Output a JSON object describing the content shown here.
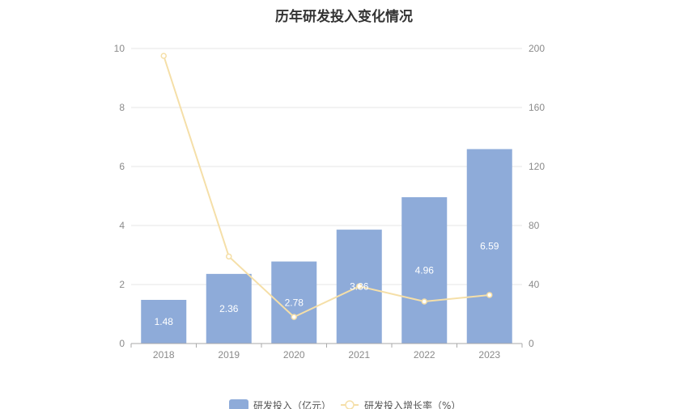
{
  "chart_data": {
    "type": "bar",
    "title": "历年研发投入变化情况",
    "categories": [
      "2018",
      "2019",
      "2020",
      "2021",
      "2022",
      "2023"
    ],
    "series": [
      {
        "name": "研发投入（亿元）",
        "type": "bar",
        "axis": "left",
        "values": [
          1.48,
          2.36,
          2.78,
          3.86,
          4.96,
          6.59
        ],
        "data_labels": [
          "1.48",
          "2.36",
          "2.78",
          "3.86",
          "4.96",
          "6.59"
        ],
        "color": "#8eabd9"
      },
      {
        "name": "研发投入增长率（%）",
        "type": "line",
        "axis": "right",
        "values": [
          195,
          59,
          18,
          38.8,
          28.5,
          32.9
        ],
        "color": "#f5dfa8"
      }
    ],
    "y_left": {
      "min": 0,
      "max": 10,
      "ticks": [
        "0",
        "2",
        "4",
        "6",
        "8",
        "10"
      ]
    },
    "y_right": {
      "min": 0,
      "max": 200,
      "ticks": [
        "0",
        "40",
        "80",
        "120",
        "160",
        "200"
      ]
    },
    "grid": true,
    "legend_position": "bottom"
  }
}
